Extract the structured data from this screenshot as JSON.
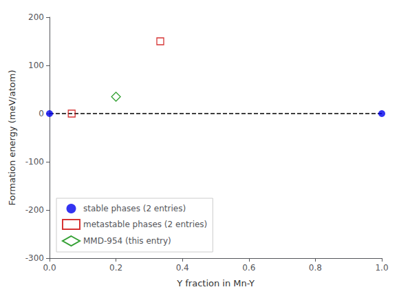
{
  "chart_data": {
    "type": "scatter",
    "xlabel": "Y fraction in Mn-Y",
    "ylabel": "Formation energy (meV/atom)",
    "xlim": [
      0.0,
      1.0
    ],
    "ylim": [
      -300,
      200
    ],
    "xticks": [
      {
        "value": 0.0,
        "label": "0.0"
      },
      0.2,
      0.4,
      0.6,
      0.8,
      {
        "value": 1.0,
        "label": "1.0"
      }
    ],
    "yticks": [
      -300,
      -200,
      -100,
      0,
      100,
      200
    ],
    "grid": false,
    "legend": "lower left",
    "series": [
      {
        "type": "line",
        "line_style": "dashed",
        "color": "#000000",
        "x": [
          0.0,
          1.0
        ],
        "values": [
          0.0,
          0.0
        ]
      },
      {
        "type": "scatter",
        "name": "stable phases (2 entries)",
        "marker": "circle",
        "color": "#0000ee",
        "x": [
          0.0,
          1.0
        ],
        "values": [
          0.0,
          0.0
        ]
      },
      {
        "type": "scatter",
        "name": "metastable phases (2 entries)",
        "marker": "open-square",
        "color": "#cc0000",
        "x": [
          0.0667,
          0.3333
        ],
        "values": [
          0.0,
          150.0
        ]
      },
      {
        "type": "scatter",
        "name": "MMD-954 (this entry)",
        "marker": "open-diamond",
        "color": "#008800",
        "x": [
          0.2
        ],
        "values": [
          35.0
        ]
      }
    ]
  }
}
